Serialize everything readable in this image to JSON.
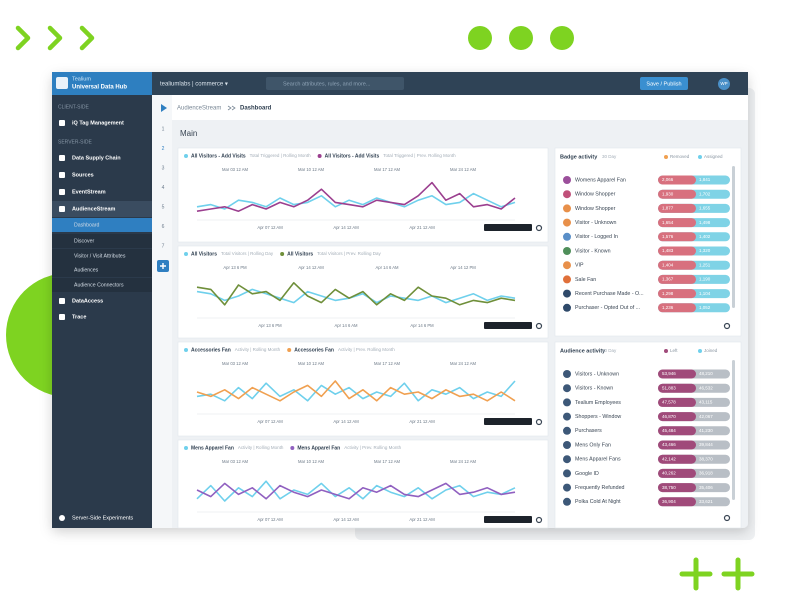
{
  "topbar": {
    "brand": [
      "Tealium",
      "Universal Data Hub"
    ],
    "account": "tealiumlabs | commerce ▾",
    "search": "Search attributes, rules, and more...",
    "publish": "Save / Publish",
    "user": "WP"
  },
  "sidebar": [
    {
      "label": "CLIENT-SIDE",
      "kind": "header"
    },
    {
      "label": "iQ Tag Management",
      "kind": "item"
    },
    {
      "label": "SERVER-SIDE",
      "kind": "header"
    },
    {
      "label": "Data Supply Chain",
      "kind": "item"
    },
    {
      "label": "Sources",
      "kind": "item"
    },
    {
      "label": "EventStream",
      "kind": "item"
    },
    {
      "label": "AudienceStream",
      "kind": "open"
    },
    {
      "label": "Dashboard",
      "kind": "active"
    },
    {
      "label": "Discover",
      "kind": "sub"
    },
    {
      "label": "Visitor / Visit Attributes",
      "kind": "sub"
    },
    {
      "label": "Audiences",
      "kind": "sub"
    },
    {
      "label": "Audience Connectors",
      "kind": "sub"
    },
    {
      "label": "DataAccess",
      "kind": "item"
    },
    {
      "label": "Trace",
      "kind": "item"
    }
  ],
  "sidebar_footer": "Server-Side Experiments",
  "tabs": [
    "1",
    "2",
    "3",
    "4",
    "5",
    "6",
    "7"
  ],
  "breadcrumb": [
    "AudienceStream",
    "Dashboard"
  ],
  "page_title": "Main",
  "charts": [
    {
      "legend": [
        {
          "name": "All Visitors - Add Visits",
          "meta": "Total Triggered | Rolling Month",
          "color": "#6fd0ec"
        },
        {
          "name": "All Visitors - Add Visits",
          "meta": "Total Triggered | Prev. Rolling Month",
          "color": "#9b3f8f"
        }
      ],
      "top_labels": [
        "Mar 03 12 AM",
        "Mar 10 12 AM",
        "Mar 17 12 AM",
        "Mar 24 12 AM"
      ],
      "bottom_labels": [
        "Apr 07 12 AM",
        "Apr 14 12 AM",
        "Apr 21 12 AM"
      ],
      "ylim": [
        0,
        100
      ],
      "series": [
        {
          "color": "#6fd0ec",
          "values": [
            30,
            35,
            25,
            45,
            40,
            30,
            50,
            35,
            40,
            55,
            30,
            45,
            35,
            50,
            40,
            30,
            45,
            55,
            35,
            40,
            60,
            45,
            30,
            40
          ]
        },
        {
          "color": "#9b3f8f",
          "values": [
            20,
            25,
            30,
            20,
            35,
            25,
            40,
            30,
            45,
            70,
            40,
            35,
            30,
            45,
            40,
            35,
            55,
            85,
            45,
            60,
            30,
            35,
            25,
            50
          ]
        }
      ]
    },
    {
      "legend": [
        {
          "name": "All Visitors",
          "meta": "Total Visitors | Rolling Day",
          "color": "#6fd0ec"
        },
        {
          "name": "All Visitors",
          "meta": "Total Visitors | Prev. Rolling Day",
          "color": "#6f8f3a"
        }
      ],
      "top_labels": [
        "Apr 13 6 PM",
        "Apr 14 12 AM",
        "Apr 14 6 AM",
        "Apr 14 12 PM"
      ],
      "bottom_labels": [
        "Apr 13 6 PM",
        "Apr 14 6 AM",
        "Apr 14 6 PM"
      ],
      "ylim": [
        0,
        100
      ],
      "series": [
        {
          "color": "#6fd0ec",
          "values": [
            60,
            55,
            40,
            50,
            65,
            55,
            45,
            35,
            60,
            50,
            40,
            45,
            55,
            35,
            50,
            45,
            40,
            50,
            35,
            45,
            55,
            40,
            50,
            45
          ]
        },
        {
          "color": "#6f8f3a",
          "values": [
            70,
            65,
            30,
            75,
            55,
            60,
            40,
            80,
            50,
            35,
            65,
            45,
            60,
            30,
            55,
            40,
            70,
            50,
            45,
            30,
            40,
            35,
            45,
            40
          ]
        }
      ]
    },
    {
      "legend": [
        {
          "name": "Accessories Fan",
          "meta": "Activity | Rolling Month",
          "color": "#6fd0ec"
        },
        {
          "name": "Accessories Fan",
          "meta": "Activity | Prev. Rolling Month",
          "color": "#f0a050"
        }
      ],
      "top_labels": [
        "Mar 03 12 AM",
        "Mar 10 12 AM",
        "Mar 17 12 AM",
        "Mar 24 12 AM"
      ],
      "bottom_labels": [
        "Apr 07 12 AM",
        "Apr 14 12 AM",
        "Apr 21 12 AM"
      ],
      "ylim": [
        0,
        100
      ],
      "series": [
        {
          "color": "#6fd0ec",
          "values": [
            40,
            45,
            30,
            60,
            35,
            70,
            40,
            55,
            30,
            65,
            45,
            60,
            35,
            50,
            40,
            70,
            30,
            55,
            45,
            60,
            35,
            50,
            40,
            75
          ]
        },
        {
          "color": "#f0a050",
          "values": [
            50,
            40,
            55,
            35,
            60,
            45,
            30,
            50,
            65,
            40,
            75,
            35,
            55,
            30,
            60,
            45,
            50,
            35,
            55,
            40,
            45,
            30,
            50,
            30
          ]
        }
      ]
    },
    {
      "legend": [
        {
          "name": "Mens Apparel Fan",
          "meta": "Activity | Rolling Month",
          "color": "#6fd0ec"
        },
        {
          "name": "Mens Apparel Fan",
          "meta": "Activity | Prev. Rolling Month",
          "color": "#9060c0"
        }
      ],
      "top_labels": [
        "Mar 03 12 AM",
        "Mar 10 12 AM",
        "Mar 17 12 AM",
        "Mar 24 12 AM"
      ],
      "bottom_labels": [
        "Apr 07 12 AM",
        "Apr 14 12 AM",
        "Apr 21 12 AM"
      ],
      "ylim": [
        0,
        100
      ],
      "series": [
        {
          "color": "#6fd0ec",
          "values": [
            30,
            60,
            25,
            55,
            35,
            70,
            30,
            50,
            40,
            65,
            35,
            55,
            30,
            60,
            45,
            35,
            55,
            30,
            50,
            60,
            35,
            45,
            40,
            55
          ]
        },
        {
          "color": "#9060c0",
          "values": [
            50,
            35,
            65,
            40,
            55,
            30,
            60,
            45,
            35,
            50,
            40,
            30,
            55,
            45,
            60,
            40,
            35,
            50,
            65,
            40,
            45,
            55,
            40,
            45
          ]
        }
      ]
    }
  ],
  "badge_activity": {
    "title": "Badge activity",
    "period": "30 Day",
    "legend": [
      {
        "name": "Removed",
        "color": "#f0a050"
      },
      {
        "name": "Assigned",
        "color": "#6fd0ec"
      }
    ],
    "items": [
      {
        "label": "Womens Apparel Fan",
        "icon": "#9b4f9b",
        "left": "2,066",
        "right": "1,841"
      },
      {
        "label": "Window Shopper",
        "icon": "#c0507a",
        "left": "1,930",
        "right": "1,702"
      },
      {
        "label": "Window Shopper",
        "icon": "#e8904a",
        "left": "1,877",
        "right": "1,655"
      },
      {
        "label": "Visitor - Unknown",
        "icon": "#e8904a",
        "left": "1,654",
        "right": "1,498"
      },
      {
        "label": "Visitor - Logged In",
        "icon": "#5a8fc8",
        "left": "1,576",
        "right": "1,402"
      },
      {
        "label": "Visitor - Known",
        "icon": "#4f8f5a",
        "left": "1,483",
        "right": "1,320"
      },
      {
        "label": "VIP",
        "icon": "#e8904a",
        "left": "1,404",
        "right": "1,251"
      },
      {
        "label": "Sale Fan",
        "icon": "#e0703a",
        "left": "1,367",
        "right": "1,190"
      },
      {
        "label": "Recent Purchase Made - O...",
        "icon": "#2f4a6a",
        "left": "1,298",
        "right": "1,104"
      },
      {
        "label": "Purchaser - Opted Out of ...",
        "icon": "#2f4a6a",
        "left": "1,236",
        "right": "1,052"
      }
    ]
  },
  "audience_activity": {
    "title": "Audience activity",
    "period": "30 Day",
    "legend": [
      {
        "name": "Left",
        "color": "#a04a7a"
      },
      {
        "name": "Joined",
        "color": "#6fd0ec"
      }
    ],
    "items": [
      {
        "label": "Visitors - Unknown",
        "left": "53,946",
        "right": "48,210"
      },
      {
        "label": "Visitors - Known",
        "left": "51,883",
        "right": "46,532"
      },
      {
        "label": "Tealium Employees",
        "left": "47,578",
        "right": "43,115"
      },
      {
        "label": "Shoppers - Window",
        "left": "46,870",
        "right": "42,067"
      },
      {
        "label": "Purchasers",
        "left": "45,484",
        "right": "41,230"
      },
      {
        "label": "Mens Only Fan",
        "left": "43,466",
        "right": "39,844"
      },
      {
        "label": "Mens Apparel Fans",
        "left": "42,142",
        "right": "38,370"
      },
      {
        "label": "Google ID",
        "left": "40,262",
        "right": "36,918"
      },
      {
        "label": "Frequently Refunded",
        "left": "38,750",
        "right": "35,406"
      },
      {
        "label": "Polka Cold At Night",
        "left": "36,904",
        "right": "33,621"
      }
    ]
  }
}
